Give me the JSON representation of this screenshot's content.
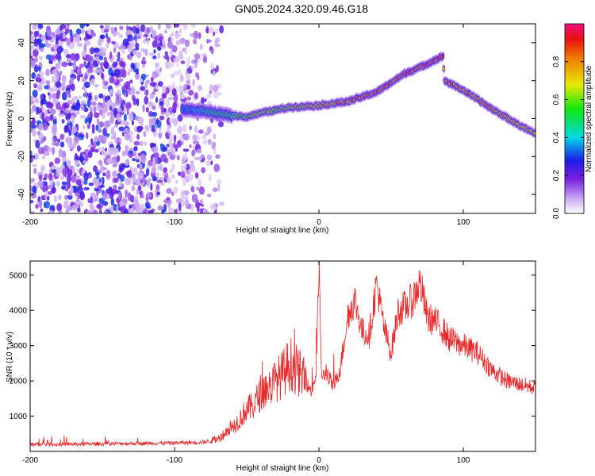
{
  "figure": {
    "title": "GN05.2024.320.09.46.G18"
  },
  "chart_data": [
    {
      "type": "heatmap",
      "xlabel": "Height of straight line (km)",
      "ylabel": "Frequency (Hz)",
      "xlim": [
        -200,
        150
      ],
      "ylim": [
        -50,
        50
      ],
      "x_ticks": [
        -200,
        -100,
        0,
        100
      ],
      "y_ticks": [
        -40,
        -20,
        0,
        20,
        40
      ],
      "colorbar": {
        "label": "Normalized spectral amplitude",
        "range": [
          0,
          1
        ],
        "ticks": [
          "0.0",
          "0.2",
          "0.4",
          "0.6",
          "0.8"
        ]
      },
      "noise_region_x": [
        -200,
        -65
      ],
      "ridge": {
        "x": [
          -95,
          -80,
          -65,
          -50,
          -40,
          -20,
          0,
          10,
          20,
          40,
          60,
          70,
          86,
          87,
          100,
          120,
          140,
          150
        ],
        "frequency": [
          5,
          4,
          2,
          1,
          3,
          6,
          7,
          8,
          9,
          14,
          24,
          27,
          33,
          20,
          15,
          5,
          -4,
          -8
        ],
        "amplitude": [
          0.35,
          0.45,
          0.6,
          0.65,
          0.7,
          0.75,
          0.8,
          0.85,
          0.9,
          0.95,
          0.97,
          0.97,
          0.95,
          0.9,
          0.9,
          0.85,
          0.8,
          0.75
        ]
      }
    },
    {
      "type": "line",
      "xlabel": "Height of straight line (km)",
      "ylabel": "SNR (10 * v/v)",
      "xlim": [
        -200,
        150
      ],
      "ylim": [
        0,
        5400
      ],
      "x_ticks": [
        -200,
        -100,
        0,
        100
      ],
      "y_ticks": [
        1000,
        2000,
        3000,
        4000,
        5000
      ],
      "color": "#e8282a",
      "series": [
        {
          "x": [
            -200,
            -180,
            -160,
            -140,
            -120,
            -100,
            -80,
            -70,
            -60,
            -55,
            -50,
            -45,
            -40,
            -35,
            -30,
            -25,
            -20,
            -15,
            -10,
            -5,
            -2,
            0,
            2,
            5,
            10,
            15,
            20,
            25,
            30,
            35,
            40,
            45,
            50,
            55,
            60,
            65,
            70,
            75,
            80,
            85,
            90,
            95,
            100,
            110,
            120,
            130,
            140,
            150
          ],
          "y": [
            200,
            200,
            210,
            220,
            230,
            240,
            260,
            350,
            700,
            900,
            1200,
            1300,
            1700,
            1800,
            2000,
            2200,
            2500,
            2300,
            2000,
            1700,
            2200,
            5200,
            2000,
            2300,
            1800,
            2400,
            3900,
            4300,
            3400,
            3300,
            4800,
            3500,
            2800,
            4000,
            4100,
            4300,
            4800,
            3800,
            3700,
            3500,
            3200,
            3100,
            3000,
            2800,
            2300,
            2000,
            1900,
            1800
          ]
        }
      ]
    }
  ]
}
